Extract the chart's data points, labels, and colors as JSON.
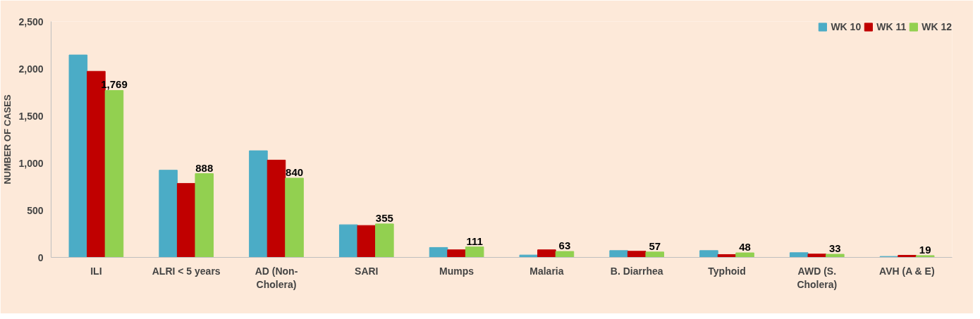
{
  "chart_data": {
    "type": "bar",
    "ylabel": "NUMBER OF CASES",
    "categories": [
      "ILI",
      "ALRI < 5 years",
      "AD (Non-Cholera)",
      "SARI",
      "Mumps",
      "Malaria",
      "B. Diarrhea",
      "Typhoid",
      "AWD (S. Cholera)",
      "AVH (A & E)"
    ],
    "series": [
      {
        "name": "WK 10",
        "color": "#4bacc6",
        "values": [
          2145,
          924,
          1130,
          346,
          105,
          25,
          72,
          72,
          50,
          10
        ]
      },
      {
        "name": "WK 11",
        "color": "#c00000",
        "values": [
          1972,
          784,
          1031,
          338,
          80,
          80,
          65,
          30,
          35,
          22
        ]
      },
      {
        "name": "WK 12",
        "color": "#92d050",
        "values": [
          1769,
          888,
          840,
          355,
          111,
          63,
          57,
          48,
          33,
          19
        ],
        "value_labels": [
          "1,769",
          "888",
          "840",
          "355",
          "111",
          "63",
          "57",
          "48",
          "33",
          "19"
        ]
      }
    ],
    "ylim": [
      0,
      2500
    ],
    "yticks": [
      {
        "value": 0,
        "label": "0"
      },
      {
        "value": 500,
        "label": "500"
      },
      {
        "value": 1000,
        "label": "1,000"
      },
      {
        "value": 1500,
        "label": "1,500"
      },
      {
        "value": 2000,
        "label": "2,000"
      },
      {
        "value": 2500,
        "label": "2,500"
      }
    ],
    "grid": false,
    "legend": "top right"
  }
}
